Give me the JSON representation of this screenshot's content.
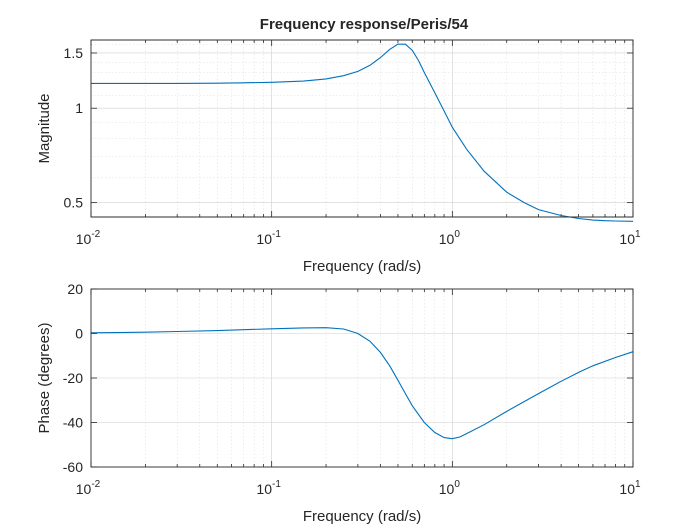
{
  "chart_data": [
    {
      "type": "line",
      "title": "Frequency response/Peris/54",
      "xlabel": "Frequency (rad/s)",
      "ylabel": "Magnitude",
      "xscale": "log",
      "yscale": "log",
      "xlim": [
        0.01,
        10
      ],
      "ylim": [
        0.45,
        1.65
      ],
      "xticks": [
        {
          "value": 0.01,
          "base": "10",
          "exp": "-2"
        },
        {
          "value": 0.1,
          "base": "10",
          "exp": "-1"
        },
        {
          "value": 1,
          "base": "10",
          "exp": "0"
        },
        {
          "value": 10,
          "base": "10",
          "exp": "1"
        }
      ],
      "yticks": [
        {
          "value": 0.5,
          "label": "0.5"
        },
        {
          "value": 1,
          "label": "1"
        },
        {
          "value": 1.5,
          "label": "1.5"
        }
      ],
      "grid": true,
      "color": "#0072bd",
      "series": [
        {
          "x": [
            0.01,
            0.02,
            0.03,
            0.05,
            0.07,
            0.1,
            0.15,
            0.2,
            0.25,
            0.3,
            0.35,
            0.4,
            0.45,
            0.5,
            0.55,
            0.6,
            0.65,
            0.7,
            0.8,
            0.9,
            1.0,
            1.2,
            1.5,
            2,
            2.5,
            3,
            4,
            5,
            6,
            7,
            8,
            10
          ],
          "y": [
            1.2,
            1.2,
            1.2,
            1.202,
            1.205,
            1.21,
            1.22,
            1.24,
            1.27,
            1.31,
            1.37,
            1.45,
            1.54,
            1.6,
            1.6,
            1.53,
            1.42,
            1.3,
            1.12,
            0.98,
            0.87,
            0.74,
            0.63,
            0.54,
            0.5,
            0.475,
            0.455,
            0.445,
            0.44,
            0.438,
            0.437,
            0.436
          ]
        }
      ]
    },
    {
      "type": "line",
      "xlabel": "Frequency (rad/s)",
      "ylabel": "Phase (degrees)",
      "xscale": "log",
      "xlim": [
        0.01,
        10
      ],
      "ylim": [
        -60,
        20
      ],
      "xticks": [
        {
          "value": 0.01,
          "base": "10",
          "exp": "-2"
        },
        {
          "value": 0.1,
          "base": "10",
          "exp": "-1"
        },
        {
          "value": 1,
          "base": "10",
          "exp": "0"
        },
        {
          "value": 10,
          "base": "10",
          "exp": "1"
        }
      ],
      "yticks": [
        {
          "value": -60,
          "label": "-60"
        },
        {
          "value": -40,
          "label": "-40"
        },
        {
          "value": -20,
          "label": "-20"
        },
        {
          "value": 0,
          "label": "0"
        },
        {
          "value": 20,
          "label": "20"
        }
      ],
      "grid": true,
      "color": "#0072bd",
      "series": [
        {
          "x": [
            0.01,
            0.02,
            0.03,
            0.05,
            0.07,
            0.1,
            0.15,
            0.2,
            0.25,
            0.3,
            0.35,
            0.4,
            0.45,
            0.5,
            0.55,
            0.6,
            0.7,
            0.8,
            0.9,
            1.0,
            1.1,
            1.2,
            1.5,
            2,
            3,
            4,
            5,
            6,
            8,
            10
          ],
          "y": [
            0.3,
            0.6,
            0.9,
            1.3,
            1.7,
            2.1,
            2.5,
            2.6,
            2.0,
            0.0,
            -3.5,
            -8.5,
            -14.5,
            -21,
            -27,
            -32.5,
            -40,
            -44.5,
            -46.8,
            -47.3,
            -46.5,
            -45,
            -41,
            -35,
            -27,
            -21.5,
            -17.5,
            -14.5,
            -10.8,
            -8.2
          ]
        }
      ]
    }
  ]
}
